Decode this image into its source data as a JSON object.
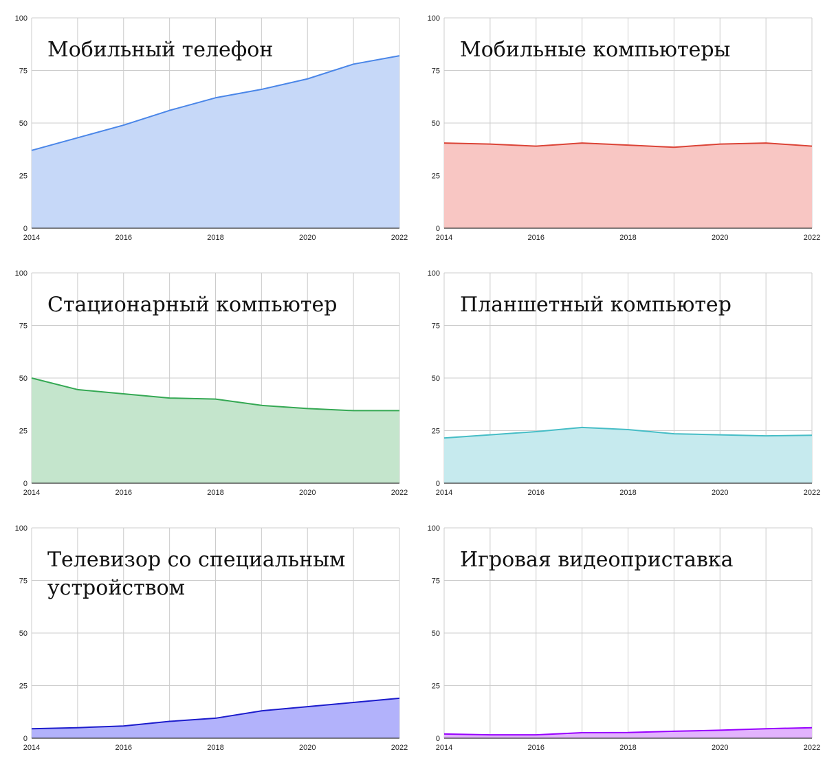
{
  "chart_data": [
    {
      "type": "area",
      "title": "Мобильный телефон",
      "color": "#4a86e8",
      "fill": "#c6d8f8",
      "x": [
        2014,
        2015,
        2016,
        2017,
        2018,
        2019,
        2020,
        2021,
        2022
      ],
      "values": [
        37,
        43,
        49,
        56,
        62,
        66,
        71,
        78,
        82
      ],
      "ylim": [
        0,
        100
      ],
      "yticks": [
        0,
        25,
        50,
        75,
        100
      ],
      "xticks": [
        2014,
        2016,
        2018,
        2020,
        2022
      ],
      "grid": true
    },
    {
      "type": "area",
      "title": "Мобильные компьютеры",
      "color": "#db4437",
      "fill": "#f8c6c3",
      "x": [
        2014,
        2015,
        2016,
        2017,
        2018,
        2019,
        2020,
        2021,
        2022
      ],
      "values": [
        40.5,
        40,
        39,
        40.5,
        39.5,
        38.5,
        40,
        40.5,
        39
      ],
      "ylim": [
        0,
        100
      ],
      "yticks": [
        0,
        25,
        50,
        75,
        100
      ],
      "xticks": [
        2014,
        2016,
        2018,
        2020,
        2022
      ],
      "grid": true
    },
    {
      "type": "area",
      "title": "Стационарный компьютер",
      "color": "#34a853",
      "fill": "#c4e5cc",
      "x": [
        2014,
        2015,
        2016,
        2017,
        2018,
        2019,
        2020,
        2021,
        2022
      ],
      "values": [
        50,
        44.5,
        42.5,
        40.5,
        40,
        37,
        35.5,
        34.5,
        34.5
      ],
      "ylim": [
        0,
        100
      ],
      "yticks": [
        0,
        25,
        50,
        75,
        100
      ],
      "xticks": [
        2014,
        2016,
        2018,
        2020,
        2022
      ],
      "grid": true
    },
    {
      "type": "area",
      "title": "Планшетный компьютер",
      "color": "#46bdc6",
      "fill": "#c6eaee",
      "x": [
        2014,
        2015,
        2016,
        2017,
        2018,
        2019,
        2020,
        2021,
        2022
      ],
      "values": [
        21.5,
        23,
        24.5,
        26.5,
        25.5,
        23.5,
        23,
        22.5,
        22.8
      ],
      "ylim": [
        0,
        100
      ],
      "yticks": [
        0,
        25,
        50,
        75,
        100
      ],
      "xticks": [
        2014,
        2016,
        2018,
        2020,
        2022
      ],
      "grid": true
    },
    {
      "type": "area",
      "title": "Телевизор со специальным устройством",
      "title_lines": [
        "Телевизор со специальным",
        "устройством"
      ],
      "color": "#1c1ccc",
      "fill": "#b2b2fb",
      "x": [
        2014,
        2015,
        2016,
        2017,
        2018,
        2019,
        2020,
        2021,
        2022
      ],
      "values": [
        4.5,
        5,
        5.8,
        8,
        9.5,
        13,
        15,
        17,
        19
      ],
      "ylim": [
        0,
        100
      ],
      "yticks": [
        0,
        25,
        50,
        75,
        100
      ],
      "xticks": [
        2014,
        2016,
        2018,
        2020,
        2022
      ],
      "grid": true
    },
    {
      "type": "area",
      "title": "Игровая видеоприставка",
      "color": "#9900ff",
      "fill": "#e2b3fd",
      "x": [
        2014,
        2015,
        2016,
        2017,
        2018,
        2019,
        2020,
        2021,
        2022
      ],
      "values": [
        2,
        1.6,
        1.6,
        2.6,
        2.7,
        3.3,
        3.8,
        4.5,
        5
      ],
      "ylim": [
        0,
        100
      ],
      "yticks": [
        0,
        25,
        50,
        75,
        100
      ],
      "xticks": [
        2014,
        2016,
        2018,
        2020,
        2022
      ],
      "grid": true
    }
  ]
}
